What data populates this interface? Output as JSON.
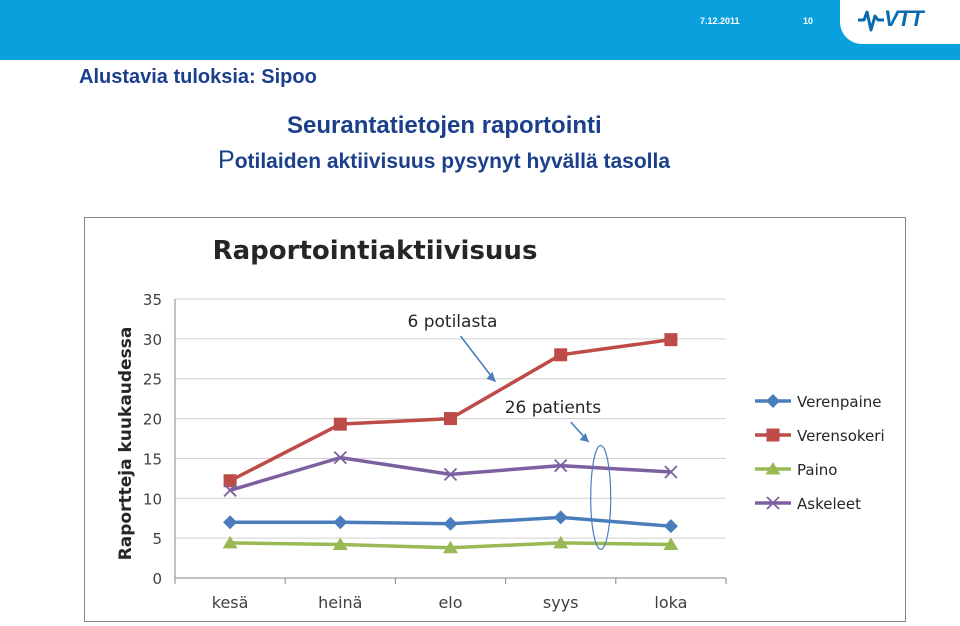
{
  "header": {
    "date": "7.12.2011",
    "page_number": "10",
    "logo_text": "VTT"
  },
  "slide_title": "Alustavia tuloksia: Sipoo",
  "heading_line1": "Seurantatietojen raportointi",
  "heading_line2_first_letter": "P",
  "heading_line2_rest": "otilaiden aktiivisuus pysynyt hyvällä tasolla",
  "colors": {
    "brand_blue": "#0aa0dd",
    "title_blue": "#1b3f8b"
  },
  "chart_data": {
    "type": "line",
    "title": "Raportointiaktiivisuus",
    "xlabel": "",
    "ylabel": "Raportteja kuukaudessa",
    "categories": [
      "kesä",
      "heinä",
      "elo",
      "syys",
      "loka"
    ],
    "ylim": [
      0,
      35
    ],
    "yticks": [
      0,
      5,
      10,
      15,
      20,
      25,
      30,
      35
    ],
    "grid": true,
    "legend_position": "right",
    "series": [
      {
        "name": "Verenpaine",
        "values": [
          7.0,
          7.0,
          6.8,
          7.6,
          6.5
        ],
        "color": "#4a7ebb",
        "marker": "diamond"
      },
      {
        "name": "Verensokeri",
        "values": [
          12.2,
          19.3,
          20.0,
          28.0,
          29.9
        ],
        "color": "#be4b48",
        "marker": "square"
      },
      {
        "name": "Paino",
        "values": [
          4.4,
          4.2,
          3.8,
          4.4,
          4.2
        ],
        "color": "#98b954",
        "marker": "triangle"
      },
      {
        "name": "Askeleet",
        "values": [
          11.0,
          15.1,
          13.0,
          14.1,
          13.3
        ],
        "color": "#7d60a0",
        "marker": "x"
      }
    ],
    "annotations": [
      {
        "text": "6 potilasta",
        "target_category": "elo",
        "target_value": 25
      },
      {
        "text": "26 patients",
        "target_category": "syys",
        "target_value": 14
      }
    ]
  }
}
